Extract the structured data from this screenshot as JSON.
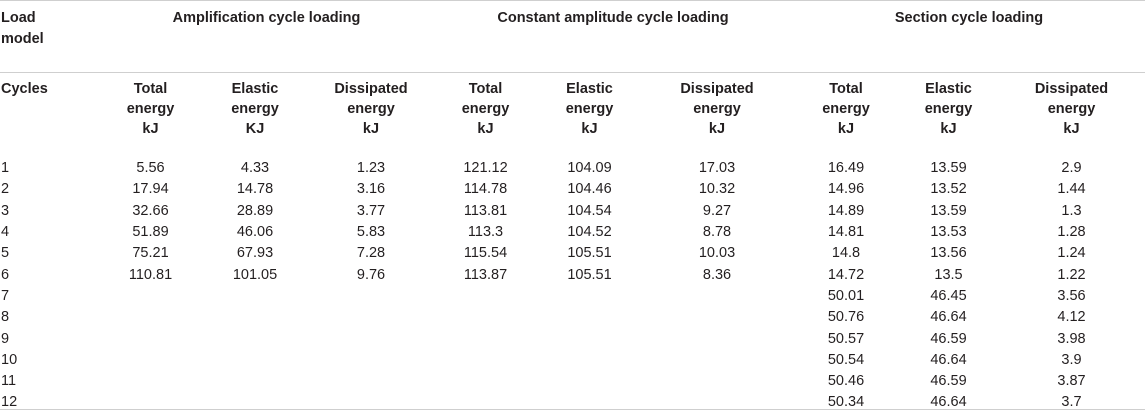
{
  "header": {
    "load_model": "Load\nmodel",
    "groups": [
      "Amplification cycle loading",
      "Constant amplitude cycle loading",
      "Section cycle loading"
    ],
    "cycles_label": "Cycles",
    "subcolumns": [
      [
        "Total",
        "energy",
        "kJ"
      ],
      [
        "Elastic",
        "energy",
        "KJ"
      ],
      [
        "Dissipated",
        "energy",
        "kJ"
      ],
      [
        "Total",
        "energy",
        "kJ"
      ],
      [
        "Elastic",
        "energy",
        "kJ"
      ],
      [
        "Dissipated",
        "energy",
        "kJ"
      ],
      [
        "Total",
        "energy",
        "kJ"
      ],
      [
        "Elastic",
        "energy",
        "kJ"
      ],
      [
        "Dissipated",
        "energy",
        "kJ"
      ]
    ]
  },
  "rows": [
    [
      "1",
      "5.56",
      "4.33",
      "1.23",
      "121.12",
      "104.09",
      "17.03",
      "16.49",
      "13.59",
      "2.9"
    ],
    [
      "2",
      "17.94",
      "14.78",
      "3.16",
      "114.78",
      "104.46",
      "10.32",
      "14.96",
      "13.52",
      "1.44"
    ],
    [
      "3",
      "32.66",
      "28.89",
      "3.77",
      "113.81",
      "104.54",
      "9.27",
      "14.89",
      "13.59",
      "1.3"
    ],
    [
      "4",
      "51.89",
      "46.06",
      "5.83",
      "113.3",
      "104.52",
      "8.78",
      "14.81",
      "13.53",
      "1.28"
    ],
    [
      "5",
      "75.21",
      "67.93",
      "7.28",
      "115.54",
      "105.51",
      "10.03",
      "14.8",
      "13.56",
      "1.24"
    ],
    [
      "6",
      "110.81",
      "101.05",
      "9.76",
      "113.87",
      "105.51",
      "8.36",
      "14.72",
      "13.5",
      "1.22"
    ],
    [
      "7",
      "",
      "",
      "",
      "",
      "",
      "",
      "50.01",
      "46.45",
      "3.56"
    ],
    [
      "8",
      "",
      "",
      "",
      "",
      "",
      "",
      "50.76",
      "46.64",
      "4.12"
    ],
    [
      "9",
      "",
      "",
      "",
      "",
      "",
      "",
      "50.57",
      "46.59",
      "3.98"
    ],
    [
      "10",
      "",
      "",
      "",
      "",
      "",
      "",
      "50.54",
      "46.64",
      "3.9"
    ],
    [
      "11",
      "",
      "",
      "",
      "",
      "",
      "",
      "50.46",
      "46.59",
      "3.87"
    ],
    [
      "12",
      "",
      "",
      "",
      "",
      "",
      "",
      "50.34",
      "46.64",
      "3.7"
    ]
  ]
}
